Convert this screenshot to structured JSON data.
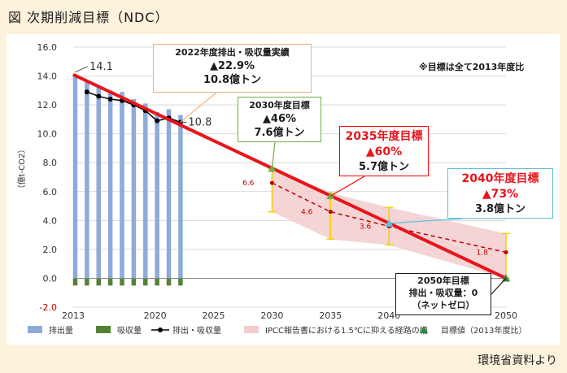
{
  "figure_title": "図 次期削減目標（NDC）",
  "source_note": "環境省資料より",
  "baseline_note": "※目標は全て2013年度比",
  "callouts": {
    "c2022": {
      "line1": "2022年度排出・吸収量実績",
      "line2": "▲22.9%",
      "line3": "10.8億トン"
    },
    "c2030": {
      "line1": "2030年度目標",
      "line2": "▲46%",
      "line3": "7.6億トン"
    },
    "c2035": {
      "line1": "2035年度目標",
      "line2": "▲60%",
      "line3": "5.7億トン"
    },
    "c2040": {
      "line1": "2040年度目標",
      "line2": "▲73%",
      "line3": "3.8億トン"
    },
    "c2050": {
      "line1": "2050年目標",
      "line2": "排出・吸収量：0",
      "line3": "（ネットゼロ）"
    }
  },
  "colors": {
    "emission_bar": "#8eaadb",
    "absorption_bar": "#548235",
    "net_line": "#000000",
    "target_line": "#e8141c",
    "ipcc_band": "#f2cccc",
    "target_marker": "#2e8b3e",
    "callout_2022_border": "#f4b183",
    "callout_2030_border": "#70ad47",
    "callout_2035_border": "#ff0000",
    "callout_2040_border": "#5bc0de"
  },
  "chart_data": {
    "type": "bar",
    "ylabel": "（億t-CO2）",
    "ylim": [
      -2.0,
      16.0
    ],
    "yticks": [
      "16.0",
      "14.0",
      "12.0",
      "10.0",
      "8.0",
      "6.0",
      "4.0",
      "2.0",
      "0.0",
      "-2.0"
    ],
    "xlim": [
      2013,
      2050
    ],
    "xticks": [
      "2013",
      "2020",
      "2025",
      "2030",
      "2035",
      "2040",
      "2050"
    ],
    "grid": true,
    "legend_position": "bottom",
    "series": [
      {
        "name": "排出量",
        "type": "bar",
        "x": [
          2013,
          2014,
          2015,
          2016,
          2017,
          2018,
          2019,
          2020,
          2021,
          2022
        ],
        "values": [
          14.1,
          13.6,
          13.2,
          13.0,
          12.9,
          12.4,
          12.1,
          11.5,
          11.7,
          11.3
        ]
      },
      {
        "name": "吸収量",
        "type": "bar",
        "x": [
          2013,
          2014,
          2015,
          2016,
          2017,
          2018,
          2019,
          2020,
          2021,
          2022
        ],
        "values": [
          -0.5,
          -0.5,
          -0.5,
          -0.5,
          -0.5,
          -0.5,
          -0.5,
          -0.5,
          -0.5,
          -0.5
        ]
      },
      {
        "name": "排出・吸収量",
        "type": "line",
        "x": [
          2014,
          2015,
          2016,
          2017,
          2018,
          2019,
          2020,
          2021,
          2022
        ],
        "values": [
          12.9,
          12.6,
          12.4,
          12.3,
          12.0,
          11.6,
          10.9,
          11.1,
          10.8
        ]
      },
      {
        "name": "IPCC報告書における1.5℃に抑える経路の幅",
        "type": "area",
        "x": [
          2030,
          2035,
          2040,
          2050
        ],
        "median": [
          6.6,
          4.6,
          3.6,
          1.8
        ],
        "upper": [
          7.6,
          5.9,
          4.9,
          3.1
        ],
        "lower": [
          4.6,
          2.7,
          2.3,
          0.0
        ]
      },
      {
        "name": "目標値（2013年度比）",
        "type": "scatter",
        "x": [
          2030,
          2035,
          2040,
          2050
        ],
        "values": [
          7.6,
          5.7,
          3.8,
          0.0
        ]
      }
    ],
    "target_line": {
      "x": [
        2013,
        2050
      ],
      "values": [
        14.1,
        0.0
      ]
    },
    "data_labels": [
      {
        "text": "14.1",
        "x": 2013,
        "y": 14.1
      },
      {
        "text": "10.8",
        "x": 2022,
        "y": 10.8
      },
      {
        "text": "6.6",
        "x": 2030,
        "y": 6.6
      },
      {
        "text": "4.6",
        "x": 2035,
        "y": 4.6
      },
      {
        "text": "3.6",
        "x": 2040,
        "y": 3.6
      },
      {
        "text": "1.8",
        "x": 2050,
        "y": 1.8
      }
    ]
  }
}
